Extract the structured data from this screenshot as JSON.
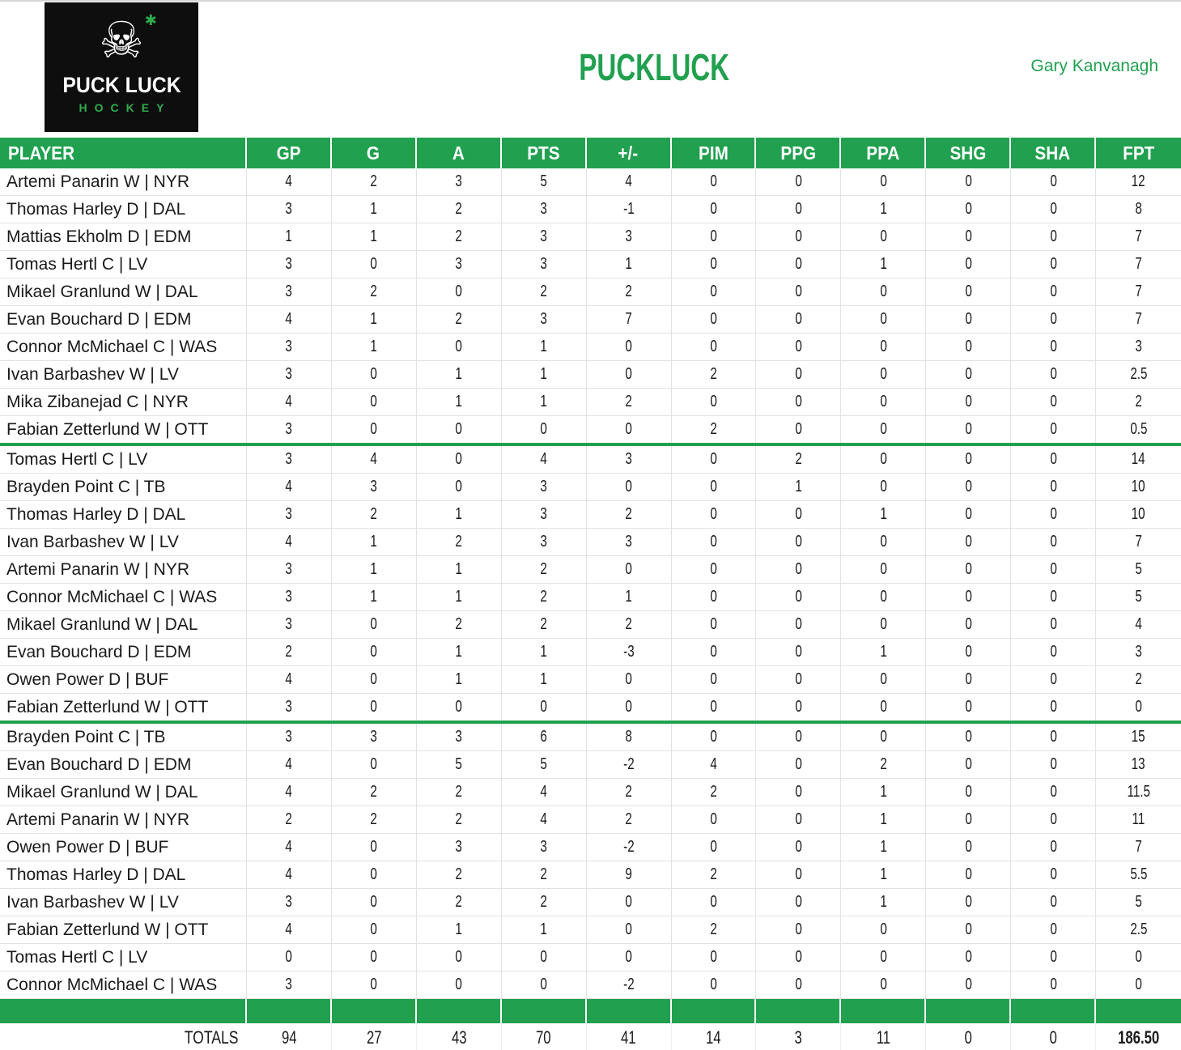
{
  "logo": {
    "line1": "PUCK LUCK",
    "line2": "HOCKEY"
  },
  "header": {
    "title": "PUCKLUCK",
    "author": "Gary Kanvanagh"
  },
  "colors": {
    "green": "#21A04F",
    "logo_bg": "#0E0E0E",
    "logo_green": "#2FAE4C",
    "grid_line": "#E2E2E2",
    "text": "#1A1A1A"
  },
  "table": {
    "columns": [
      "PLAYER",
      "GP",
      "G",
      "A",
      "PTS",
      "+/-",
      "PIM",
      "PPG",
      "PPA",
      "SHG",
      "SHA",
      "FPT"
    ],
    "groups": [
      {
        "rows": [
          {
            "player": "Artemi Panarin W | NYR",
            "stats": [
              "4",
              "2",
              "3",
              "5",
              "4",
              "0",
              "0",
              "0",
              "0",
              "0",
              "12"
            ]
          },
          {
            "player": "Thomas Harley D | DAL",
            "stats": [
              "3",
              "1",
              "2",
              "3",
              "-1",
              "0",
              "0",
              "1",
              "0",
              "0",
              "8"
            ]
          },
          {
            "player": "Mattias Ekholm D | EDM",
            "stats": [
              "1",
              "1",
              "2",
              "3",
              "3",
              "0",
              "0",
              "0",
              "0",
              "0",
              "7"
            ]
          },
          {
            "player": "Tomas Hertl C | LV",
            "stats": [
              "3",
              "0",
              "3",
              "3",
              "1",
              "0",
              "0",
              "1",
              "0",
              "0",
              "7"
            ]
          },
          {
            "player": "Mikael Granlund W | DAL",
            "stats": [
              "3",
              "2",
              "0",
              "2",
              "2",
              "0",
              "0",
              "0",
              "0",
              "0",
              "7"
            ]
          },
          {
            "player": "Evan Bouchard D | EDM",
            "stats": [
              "4",
              "1",
              "2",
              "3",
              "7",
              "0",
              "0",
              "0",
              "0",
              "0",
              "7"
            ]
          },
          {
            "player": "Connor McMichael C | WAS",
            "stats": [
              "3",
              "1",
              "0",
              "1",
              "0",
              "0",
              "0",
              "0",
              "0",
              "0",
              "3"
            ]
          },
          {
            "player": "Ivan Barbashev W | LV",
            "stats": [
              "3",
              "0",
              "1",
              "1",
              "0",
              "2",
              "0",
              "0",
              "0",
              "0",
              "2.5"
            ]
          },
          {
            "player": "Mika Zibanejad C | NYR",
            "stats": [
              "4",
              "0",
              "1",
              "1",
              "2",
              "0",
              "0",
              "0",
              "0",
              "0",
              "2"
            ]
          },
          {
            "player": "Fabian Zetterlund W | OTT",
            "stats": [
              "3",
              "0",
              "0",
              "0",
              "0",
              "2",
              "0",
              "0",
              "0",
              "0",
              "0.5"
            ]
          }
        ]
      },
      {
        "rows": [
          {
            "player": "Tomas Hertl C | LV",
            "stats": [
              "3",
              "4",
              "0",
              "4",
              "3",
              "0",
              "2",
              "0",
              "0",
              "0",
              "14"
            ]
          },
          {
            "player": "Brayden Point C | TB",
            "stats": [
              "4",
              "3",
              "0",
              "3",
              "0",
              "0",
              "1",
              "0",
              "0",
              "0",
              "10"
            ]
          },
          {
            "player": "Thomas Harley D | DAL",
            "stats": [
              "3",
              "2",
              "1",
              "3",
              "2",
              "0",
              "0",
              "1",
              "0",
              "0",
              "10"
            ]
          },
          {
            "player": "Ivan Barbashev W | LV",
            "stats": [
              "4",
              "1",
              "2",
              "3",
              "3",
              "0",
              "0",
              "0",
              "0",
              "0",
              "7"
            ]
          },
          {
            "player": "Artemi Panarin W | NYR",
            "stats": [
              "3",
              "1",
              "1",
              "2",
              "0",
              "0",
              "0",
              "0",
              "0",
              "0",
              "5"
            ]
          },
          {
            "player": "Connor McMichael C | WAS",
            "stats": [
              "3",
              "1",
              "1",
              "2",
              "1",
              "0",
              "0",
              "0",
              "0",
              "0",
              "5"
            ]
          },
          {
            "player": "Mikael Granlund W | DAL",
            "stats": [
              "3",
              "0",
              "2",
              "2",
              "2",
              "0",
              "0",
              "0",
              "0",
              "0",
              "4"
            ]
          },
          {
            "player": "Evan Bouchard D | EDM",
            "stats": [
              "2",
              "0",
              "1",
              "1",
              "-3",
              "0",
              "0",
              "1",
              "0",
              "0",
              "3"
            ]
          },
          {
            "player": "Owen Power D | BUF",
            "stats": [
              "4",
              "0",
              "1",
              "1",
              "0",
              "0",
              "0",
              "0",
              "0",
              "0",
              "2"
            ]
          },
          {
            "player": "Fabian Zetterlund W | OTT",
            "stats": [
              "3",
              "0",
              "0",
              "0",
              "0",
              "0",
              "0",
              "0",
              "0",
              "0",
              "0"
            ]
          }
        ]
      },
      {
        "rows": [
          {
            "player": "Brayden Point C | TB",
            "stats": [
              "3",
              "3",
              "3",
              "6",
              "8",
              "0",
              "0",
              "0",
              "0",
              "0",
              "15"
            ]
          },
          {
            "player": "Evan Bouchard D | EDM",
            "stats": [
              "4",
              "0",
              "5",
              "5",
              "-2",
              "4",
              "0",
              "2",
              "0",
              "0",
              "13"
            ]
          },
          {
            "player": "Mikael Granlund W | DAL",
            "stats": [
              "4",
              "2",
              "2",
              "4",
              "2",
              "2",
              "0",
              "1",
              "0",
              "0",
              "11.5"
            ]
          },
          {
            "player": "Artemi Panarin W | NYR",
            "stats": [
              "2",
              "2",
              "2",
              "4",
              "2",
              "0",
              "0",
              "1",
              "0",
              "0",
              "11"
            ]
          },
          {
            "player": "Owen Power D | BUF",
            "stats": [
              "4",
              "0",
              "3",
              "3",
              "-2",
              "0",
              "0",
              "1",
              "0",
              "0",
              "7"
            ]
          },
          {
            "player": "Thomas Harley D | DAL",
            "stats": [
              "4",
              "0",
              "2",
              "2",
              "9",
              "2",
              "0",
              "1",
              "0",
              "0",
              "5.5"
            ]
          },
          {
            "player": "Ivan Barbashev W | LV",
            "stats": [
              "3",
              "0",
              "2",
              "2",
              "0",
              "0",
              "0",
              "1",
              "0",
              "0",
              "5"
            ]
          },
          {
            "player": "Fabian Zetterlund W | OTT",
            "stats": [
              "4",
              "0",
              "1",
              "1",
              "0",
              "2",
              "0",
              "0",
              "0",
              "0",
              "2.5"
            ]
          },
          {
            "player": "Tomas Hertl C | LV",
            "stats": [
              "0",
              "0",
              "0",
              "0",
              "0",
              "0",
              "0",
              "0",
              "0",
              "0",
              "0"
            ]
          },
          {
            "player": "Connor McMichael C | WAS",
            "stats": [
              "3",
              "0",
              "0",
              "0",
              "-2",
              "0",
              "0",
              "0",
              "0",
              "0",
              "0"
            ]
          }
        ]
      }
    ],
    "totals": {
      "label": "TOTALS",
      "values": [
        "94",
        "27",
        "43",
        "70",
        "41",
        "14",
        "3",
        "11",
        "0",
        "0",
        "186.50"
      ]
    }
  }
}
